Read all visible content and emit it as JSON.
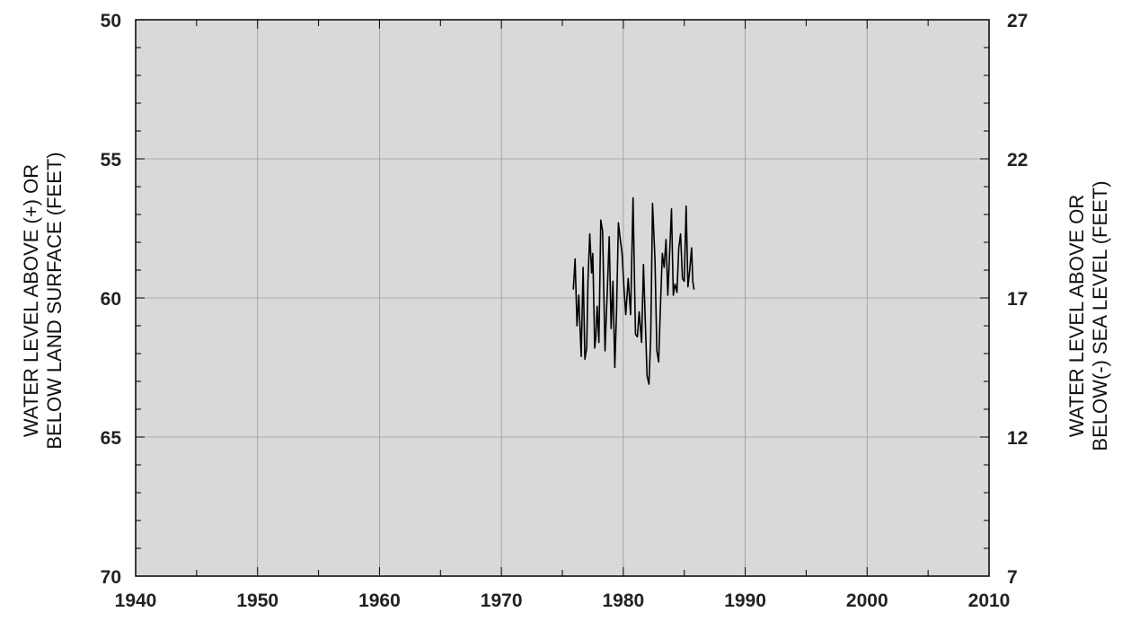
{
  "chart_data": {
    "type": "line",
    "title": "",
    "ylabel_left": [
      "WATER LEVEL ABOVE (+) OR",
      "BELOW LAND SURFACE (FEET)"
    ],
    "ylabel_right": [
      "WATER LEVEL ABOVE OR",
      "BELOW(-) SEA LEVEL (FEET)"
    ],
    "xlim": [
      1940,
      2010
    ],
    "ylim_left": [
      50,
      70
    ],
    "ylim_right": [
      27,
      7
    ],
    "left_axis_inverted": true,
    "x_ticks": [
      "1940",
      "1950",
      "1960",
      "1970",
      "1980",
      "1990",
      "2000",
      "2010"
    ],
    "y_ticks_left": [
      "50",
      "55",
      "60",
      "65",
      "70"
    ],
    "y_ticks_right": [
      "27",
      "22",
      "17",
      "12",
      "7"
    ],
    "grid": true,
    "background_color": "#d9d9d9",
    "line_color": "#000000",
    "series": [
      {
        "x": [
          1975.9,
          1976.05,
          1976.2,
          1976.35,
          1976.45,
          1976.55,
          1976.7,
          1976.85,
          1977.0,
          1977.1,
          1977.25,
          1977.4,
          1977.5,
          1977.65,
          1977.75,
          1977.85,
          1978.0,
          1978.15,
          1978.3,
          1978.5,
          1978.7,
          1978.85,
          1979.0,
          1979.15,
          1979.3,
          1979.45,
          1979.6,
          1979.75,
          1979.9,
          1980.05,
          1980.2,
          1980.4,
          1980.6,
          1980.8,
          1981.0,
          1981.15,
          1981.3,
          1981.5,
          1981.65,
          1981.8,
          1981.95,
          1982.1,
          1982.25,
          1982.4,
          1982.6,
          1982.75,
          1982.9,
          1983.05,
          1983.2,
          1983.35,
          1983.5,
          1983.65,
          1983.8,
          1983.95,
          1984.1,
          1984.25,
          1984.4,
          1984.55,
          1984.7,
          1984.85,
          1985.0,
          1985.15,
          1985.3,
          1985.45,
          1985.6,
          1985.7,
          1985.8
        ],
        "y": [
          59.7,
          58.6,
          61.0,
          59.9,
          61.1,
          62.1,
          58.9,
          62.2,
          61.8,
          59.4,
          57.7,
          59.1,
          58.4,
          61.8,
          61.4,
          60.3,
          61.6,
          57.2,
          57.6,
          61.9,
          59.6,
          57.8,
          61.1,
          59.4,
          62.5,
          60.4,
          57.3,
          57.9,
          58.4,
          59.6,
          60.6,
          59.3,
          60.6,
          56.4,
          61.3,
          61.4,
          60.5,
          61.6,
          58.8,
          60.8,
          62.8,
          63.1,
          61.4,
          56.6,
          58.6,
          61.9,
          62.3,
          60.3,
          58.4,
          58.9,
          57.9,
          59.9,
          58.4,
          56.8,
          59.9,
          59.5,
          59.8,
          58.2,
          57.7,
          59.3,
          59.4,
          56.7,
          59.6,
          59.0,
          58.2,
          59.4,
          59.7
        ]
      }
    ]
  }
}
